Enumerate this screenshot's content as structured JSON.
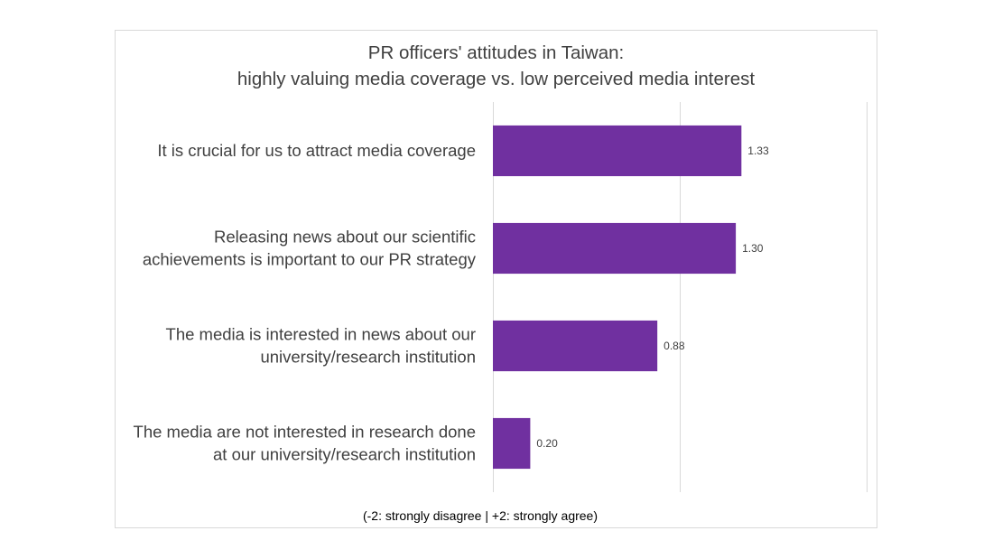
{
  "chart_data": {
    "type": "bar",
    "orientation": "horizontal",
    "title": [
      "PR officers' attitudes in Taiwan:",
      "highly valuing media coverage vs. low perceived media interest"
    ],
    "categories": [
      [
        "It is crucial for us to attract media coverage"
      ],
      [
        "Releasing news about our scientific",
        "achievements is important to our PR strategy"
      ],
      [
        "The media is interested in news about our",
        "university/research institution"
      ],
      [
        "The media are not interested in research done",
        "at our university/research institution"
      ]
    ],
    "values": [
      1.33,
      1.3,
      0.88,
      0.2
    ],
    "value_labels": [
      "1.33",
      "1.30",
      "0.88",
      "0.20"
    ],
    "xlim": [
      0,
      2
    ],
    "vertical_gridlines": true,
    "axis_note": "(-2: strongly disagree | +2: strongly agree)",
    "bar_color": "#7030a0",
    "grid_color": "#d9d9d9"
  }
}
